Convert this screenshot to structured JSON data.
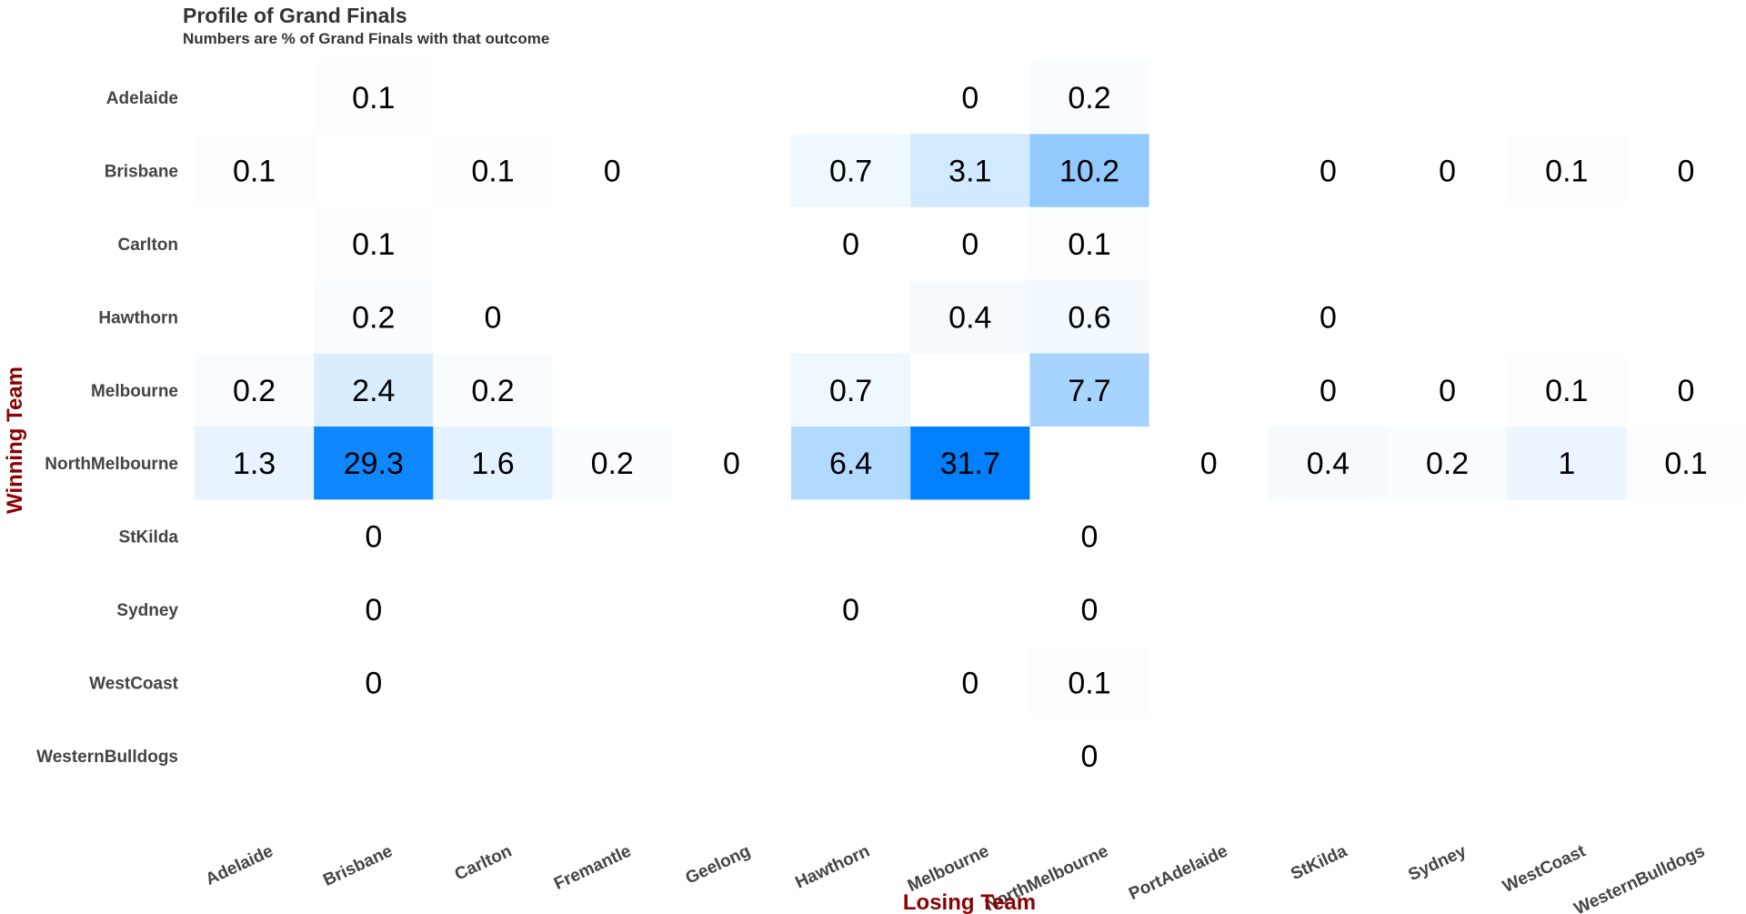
{
  "chart_data": {
    "type": "heatmap",
    "title": "Profile of Grand Finals",
    "subtitle": "Numbers are % of Grand Finals with that outcome",
    "xlabel": "Losing Team",
    "ylabel": "Winning Team",
    "x_categories": [
      "Adelaide",
      "Brisbane",
      "Carlton",
      "Fremantle",
      "Geelong",
      "Hawthorn",
      "Melbourne",
      "NorthMelbourne",
      "PortAdelaide",
      "StKilda",
      "Sydney",
      "WestCoast",
      "WesternBulldogs"
    ],
    "y_categories": [
      "Adelaide",
      "Brisbane",
      "Carlton",
      "Hawthorn",
      "Melbourne",
      "NorthMelbourne",
      "StKilda",
      "Sydney",
      "WestCoast",
      "WesternBulldogs"
    ],
    "cells": [
      {
        "winner": "Adelaide",
        "loser": "Brisbane",
        "value": 0.1
      },
      {
        "winner": "Adelaide",
        "loser": "Melbourne",
        "value": 0
      },
      {
        "winner": "Adelaide",
        "loser": "NorthMelbourne",
        "value": 0.2
      },
      {
        "winner": "Brisbane",
        "loser": "Adelaide",
        "value": 0.1
      },
      {
        "winner": "Brisbane",
        "loser": "Carlton",
        "value": 0.1
      },
      {
        "winner": "Brisbane",
        "loser": "Fremantle",
        "value": 0
      },
      {
        "winner": "Brisbane",
        "loser": "Hawthorn",
        "value": 0.7
      },
      {
        "winner": "Brisbane",
        "loser": "Melbourne",
        "value": 3.1
      },
      {
        "winner": "Brisbane",
        "loser": "NorthMelbourne",
        "value": 10.2
      },
      {
        "winner": "Brisbane",
        "loser": "StKilda",
        "value": 0
      },
      {
        "winner": "Brisbane",
        "loser": "Sydney",
        "value": 0
      },
      {
        "winner": "Brisbane",
        "loser": "WestCoast",
        "value": 0.1
      },
      {
        "winner": "Brisbane",
        "loser": "WesternBulldogs",
        "value": 0
      },
      {
        "winner": "Carlton",
        "loser": "Brisbane",
        "value": 0.1
      },
      {
        "winner": "Carlton",
        "loser": "Hawthorn",
        "value": 0
      },
      {
        "winner": "Carlton",
        "loser": "Melbourne",
        "value": 0
      },
      {
        "winner": "Carlton",
        "loser": "NorthMelbourne",
        "value": 0.1
      },
      {
        "winner": "Hawthorn",
        "loser": "Brisbane",
        "value": 0.2
      },
      {
        "winner": "Hawthorn",
        "loser": "Carlton",
        "value": 0
      },
      {
        "winner": "Hawthorn",
        "loser": "Melbourne",
        "value": 0.4
      },
      {
        "winner": "Hawthorn",
        "loser": "NorthMelbourne",
        "value": 0.6
      },
      {
        "winner": "Hawthorn",
        "loser": "StKilda",
        "value": 0
      },
      {
        "winner": "Melbourne",
        "loser": "Adelaide",
        "value": 0.2
      },
      {
        "winner": "Melbourne",
        "loser": "Brisbane",
        "value": 2.4
      },
      {
        "winner": "Melbourne",
        "loser": "Carlton",
        "value": 0.2
      },
      {
        "winner": "Melbourne",
        "loser": "Hawthorn",
        "value": 0.7
      },
      {
        "winner": "Melbourne",
        "loser": "NorthMelbourne",
        "value": 7.7
      },
      {
        "winner": "Melbourne",
        "loser": "StKilda",
        "value": 0
      },
      {
        "winner": "Melbourne",
        "loser": "Sydney",
        "value": 0
      },
      {
        "winner": "Melbourne",
        "loser": "WestCoast",
        "value": 0.1
      },
      {
        "winner": "Melbourne",
        "loser": "WesternBulldogs",
        "value": 0
      },
      {
        "winner": "NorthMelbourne",
        "loser": "Adelaide",
        "value": 1.3
      },
      {
        "winner": "NorthMelbourne",
        "loser": "Brisbane",
        "value": 29.3
      },
      {
        "winner": "NorthMelbourne",
        "loser": "Carlton",
        "value": 1.6
      },
      {
        "winner": "NorthMelbourne",
        "loser": "Fremantle",
        "value": 0.2
      },
      {
        "winner": "NorthMelbourne",
        "loser": "Geelong",
        "value": 0
      },
      {
        "winner": "NorthMelbourne",
        "loser": "Hawthorn",
        "value": 6.4
      },
      {
        "winner": "NorthMelbourne",
        "loser": "Melbourne",
        "value": 31.7
      },
      {
        "winner": "NorthMelbourne",
        "loser": "PortAdelaide",
        "value": 0
      },
      {
        "winner": "NorthMelbourne",
        "loser": "StKilda",
        "value": 0.4
      },
      {
        "winner": "NorthMelbourne",
        "loser": "Sydney",
        "value": 0.2
      },
      {
        "winner": "NorthMelbourne",
        "loser": "WestCoast",
        "value": 1
      },
      {
        "winner": "NorthMelbourne",
        "loser": "WesternBulldogs",
        "value": 0.1
      },
      {
        "winner": "StKilda",
        "loser": "Brisbane",
        "value": 0
      },
      {
        "winner": "StKilda",
        "loser": "NorthMelbourne",
        "value": 0
      },
      {
        "winner": "Sydney",
        "loser": "Brisbane",
        "value": 0
      },
      {
        "winner": "Sydney",
        "loser": "Hawthorn",
        "value": 0
      },
      {
        "winner": "Sydney",
        "loser": "NorthMelbourne",
        "value": 0
      },
      {
        "winner": "WestCoast",
        "loser": "Brisbane",
        "value": 0
      },
      {
        "winner": "WestCoast",
        "loser": "Melbourne",
        "value": 0
      },
      {
        "winner": "WestCoast",
        "loser": "NorthMelbourne",
        "value": 0.1
      },
      {
        "winner": "WesternBulldogs",
        "loser": "NorthMelbourne",
        "value": 0
      }
    ],
    "color_low": "#ffffff",
    "color_high": "#0080ff",
    "grid": false,
    "legend": "none"
  }
}
